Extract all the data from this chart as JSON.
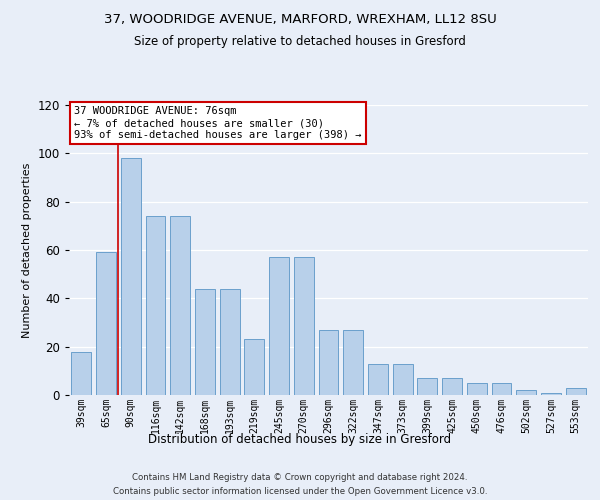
{
  "title_line1": "37, WOODRIDGE AVENUE, MARFORD, WREXHAM, LL12 8SU",
  "title_line2": "Size of property relative to detached houses in Gresford",
  "xlabel": "Distribution of detached houses by size in Gresford",
  "ylabel": "Number of detached properties",
  "footnote1": "Contains HM Land Registry data © Crown copyright and database right 2024.",
  "footnote2": "Contains public sector information licensed under the Open Government Licence v3.0.",
  "categories": [
    "39sqm",
    "65sqm",
    "90sqm",
    "116sqm",
    "142sqm",
    "168sqm",
    "193sqm",
    "219sqm",
    "245sqm",
    "270sqm",
    "296sqm",
    "322sqm",
    "347sqm",
    "373sqm",
    "399sqm",
    "425sqm",
    "450sqm",
    "476sqm",
    "502sqm",
    "527sqm",
    "553sqm"
  ],
  "bar_heights": [
    18,
    59,
    98,
    74,
    74,
    44,
    44,
    23,
    57,
    57,
    27,
    27,
    13,
    13,
    7,
    7,
    5,
    5,
    2,
    1,
    3
  ],
  "bar_color": "#b8d0ea",
  "bar_edge_color": "#6aa0cc",
  "vline_color": "#cc0000",
  "vline_x_index": 1.5,
  "annotation_border_color": "#cc0000",
  "ylim": [
    0,
    120
  ],
  "yticks": [
    0,
    20,
    40,
    60,
    80,
    100,
    120
  ],
  "background_color": "#e8eef8",
  "grid_color": "#ffffff",
  "footnote_color": "#333333"
}
